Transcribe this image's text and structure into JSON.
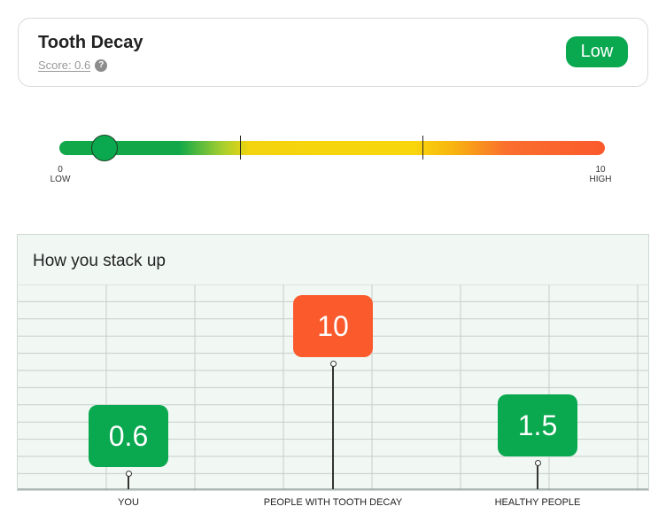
{
  "header": {
    "title": "Tooth Decay",
    "score_label": "Score: 0.6",
    "help_icon": "question-icon",
    "status": "Low",
    "status_color": "#0aa84f"
  },
  "gauge": {
    "value": 0.6,
    "min": 0,
    "max": 10,
    "min_label": "0",
    "min_sublabel": "LOW",
    "max_label": "10",
    "max_sublabel": "HIGH",
    "segment_boundaries": [
      3.33,
      6.67
    ],
    "colors": {
      "low": "#0aa84f",
      "mid": "#f9d60c",
      "high": "#fb5a2c"
    }
  },
  "stack": {
    "title": "How you stack up"
  },
  "chart_data": {
    "type": "scatter",
    "title": "How you stack up",
    "categories": [
      "YOU",
      "PEOPLE WITH TOOTH DECAY",
      "HEALTHY PEOPLE"
    ],
    "values": [
      0.6,
      10,
      1.5
    ],
    "value_labels": [
      "0.6",
      "10",
      "1.5"
    ],
    "colors": [
      "#0aa84f",
      "#fb5a2c",
      "#0aa84f"
    ],
    "grid": true
  }
}
